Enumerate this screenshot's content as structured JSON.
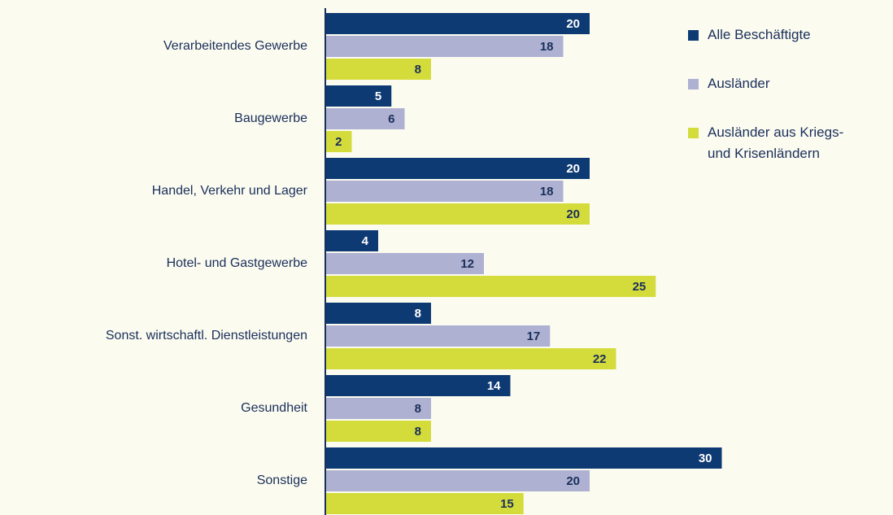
{
  "chart_data": {
    "type": "barh",
    "categories": [
      "Verarbeitendes Gewerbe",
      "Baugewerbe",
      "Handel, Verkehr und Lager",
      "Hotel- und Gastgewerbe",
      "Sonst. wirtschaftl. Dienstleistungen",
      "Gesundheit",
      "Sonstige"
    ],
    "series": [
      {
        "name": "Alle Beschäftigte",
        "color": "#0e3a73",
        "values": [
          20,
          5,
          20,
          4,
          8,
          14,
          30
        ]
      },
      {
        "name": "Ausländer",
        "color": "#aeb1d2",
        "values": [
          18,
          6,
          18,
          12,
          17,
          8,
          20
        ]
      },
      {
        "name": "Ausländer aus Kriegs- und Krisenländern",
        "color": "#d4dc3c",
        "values": [
          8,
          2,
          20,
          25,
          22,
          8,
          15
        ]
      }
    ]
  }
}
